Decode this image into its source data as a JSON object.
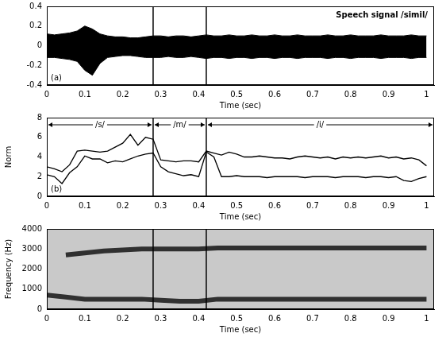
{
  "chart_data": [
    {
      "type": "area",
      "panel": "(a)",
      "annotation": "Speech signal /simil/",
      "xlabel": "Time (sec)",
      "x": [
        0,
        0.02,
        0.04,
        0.06,
        0.08,
        0.1,
        0.12,
        0.14,
        0.16,
        0.18,
        0.2,
        0.22,
        0.24,
        0.26,
        0.28,
        0.3,
        0.32,
        0.34,
        0.36,
        0.38,
        0.4,
        0.42,
        0.44,
        0.46,
        0.48,
        0.5,
        0.52,
        0.54,
        0.56,
        0.58,
        0.6,
        0.62,
        0.64,
        0.66,
        0.68,
        0.7,
        0.72,
        0.74,
        0.76,
        0.78,
        0.8,
        0.82,
        0.84,
        0.86,
        0.88,
        0.9,
        0.92,
        0.94,
        0.96,
        0.98,
        1.0
      ],
      "series": [
        {
          "color": "#000000",
          "values": [
            0.12,
            0.11,
            0.12,
            0.13,
            0.15,
            0.2,
            0.17,
            0.12,
            0.1,
            0.09,
            0.09,
            0.08,
            0.08,
            0.09,
            0.1,
            0.1,
            0.09,
            0.1,
            0.1,
            0.09,
            0.1,
            0.11,
            0.1,
            0.1,
            0.11,
            0.1,
            0.1,
            0.11,
            0.1,
            0.1,
            0.11,
            0.1,
            0.1,
            0.11,
            0.1,
            0.1,
            0.1,
            0.11,
            0.1,
            0.1,
            0.11,
            0.1,
            0.1,
            0.1,
            0.11,
            0.1,
            0.1,
            0.1,
            0.11,
            0.1,
            0.1
          ]
        },
        {
          "color": "#000000",
          "values": [
            -0.12,
            -0.12,
            -0.13,
            -0.14,
            -0.16,
            -0.25,
            -0.3,
            -0.18,
            -0.12,
            -0.11,
            -0.1,
            -0.1,
            -0.11,
            -0.12,
            -0.12,
            -0.12,
            -0.11,
            -0.12,
            -0.12,
            -0.11,
            -0.12,
            -0.13,
            -0.12,
            -0.12,
            -0.13,
            -0.12,
            -0.12,
            -0.13,
            -0.12,
            -0.12,
            -0.13,
            -0.12,
            -0.12,
            -0.13,
            -0.12,
            -0.12,
            -0.12,
            -0.13,
            -0.12,
            -0.12,
            -0.13,
            -0.12,
            -0.12,
            -0.12,
            -0.13,
            -0.12,
            -0.12,
            -0.12,
            -0.13,
            -0.12,
            -0.12
          ]
        }
      ],
      "boundaries": [
        0.28,
        0.42
      ],
      "xlim": [
        0,
        1.02
      ],
      "xticks": [
        0,
        0.1,
        0.2,
        0.3,
        0.4,
        0.5,
        0.6,
        0.7,
        0.8,
        0.9,
        1
      ],
      "ylim": [
        -0.4,
        0.4
      ],
      "yticks": [
        -0.4,
        -0.2,
        0,
        0.2,
        0.4
      ],
      "grid": false
    },
    {
      "type": "line",
      "panel": "(b)",
      "xlabel": "Time (sec)",
      "ylabel": "Norm",
      "x": [
        0,
        0.02,
        0.04,
        0.06,
        0.08,
        0.1,
        0.12,
        0.14,
        0.16,
        0.18,
        0.2,
        0.22,
        0.24,
        0.26,
        0.28,
        0.3,
        0.32,
        0.34,
        0.36,
        0.38,
        0.4,
        0.42,
        0.44,
        0.46,
        0.48,
        0.5,
        0.52,
        0.54,
        0.56,
        0.58,
        0.6,
        0.62,
        0.64,
        0.66,
        0.68,
        0.7,
        0.72,
        0.74,
        0.76,
        0.78,
        0.8,
        0.82,
        0.84,
        0.86,
        0.88,
        0.9,
        0.92,
        0.94,
        0.96,
        0.98,
        1.0
      ],
      "series": [
        {
          "color": "#000000",
          "values": [
            3.0,
            2.8,
            2.5,
            3.2,
            4.6,
            4.7,
            4.6,
            4.5,
            4.6,
            5.0,
            5.4,
            6.3,
            5.2,
            6.0,
            5.8,
            3.7,
            3.6,
            3.5,
            3.6,
            3.6,
            3.5,
            4.6,
            4.4,
            4.2,
            4.5,
            4.3,
            4.0,
            4.0,
            4.1,
            4.0,
            3.9,
            3.9,
            3.8,
            4.0,
            4.1,
            4.0,
            3.9,
            4.0,
            3.8,
            4.0,
            3.9,
            4.0,
            3.9,
            4.0,
            4.1,
            3.9,
            4.0,
            3.8,
            3.9,
            3.7,
            3.1
          ]
        },
        {
          "color": "#000000",
          "values": [
            2.2,
            2.0,
            1.3,
            2.4,
            3.0,
            4.1,
            3.8,
            3.8,
            3.4,
            3.6,
            3.5,
            3.8,
            4.1,
            4.3,
            4.4,
            3.0,
            2.5,
            2.3,
            2.1,
            2.2,
            2.0,
            4.5,
            4.0,
            2.0,
            2.0,
            2.1,
            2.0,
            2.0,
            2.0,
            1.9,
            2.0,
            2.0,
            2.0,
            2.0,
            1.9,
            2.0,
            2.0,
            2.0,
            1.9,
            2.0,
            2.0,
            2.0,
            1.9,
            2.0,
            2.0,
            1.9,
            2.0,
            1.6,
            1.5,
            1.8,
            2.0
          ]
        }
      ],
      "boundaries": [
        0.28,
        0.42
      ],
      "segments": [
        {
          "label": "/s/",
          "start": 0,
          "end": 0.28
        },
        {
          "label": "/m/",
          "start": 0.28,
          "end": 0.42
        },
        {
          "label": "/i/",
          "start": 0.42,
          "end": 1.02
        }
      ],
      "xlim": [
        0,
        1.02
      ],
      "xticks": [
        0,
        0.1,
        0.2,
        0.3,
        0.4,
        0.5,
        0.6,
        0.7,
        0.8,
        0.9,
        1
      ],
      "ylim": [
        0,
        8
      ],
      "yticks": [
        0,
        2,
        4,
        6,
        8
      ],
      "grid": false
    },
    {
      "type": "line",
      "xlabel": "Time (sec)",
      "ylabel": "Frequency (Hz)",
      "x": [
        0,
        0.05,
        0.1,
        0.15,
        0.2,
        0.25,
        0.3,
        0.35,
        0.4,
        0.45,
        0.5,
        0.55,
        0.6,
        0.65,
        0.7,
        0.75,
        0.8,
        0.85,
        0.9,
        0.95,
        1.0
      ],
      "series": [
        {
          "color": "#303030",
          "values": [
            700,
            600,
            500,
            500,
            500,
            500,
            450,
            400,
            400,
            500,
            500,
            500,
            500,
            500,
            500,
            500,
            500,
            500,
            500,
            500,
            500
          ]
        },
        {
          "color": "#303030",
          "values": [
            null,
            2700,
            2800,
            2900,
            2950,
            3000,
            3000,
            3000,
            3000,
            3050,
            3050,
            3050,
            3050,
            3050,
            3050,
            3050,
            3050,
            3050,
            3050,
            3050,
            3050
          ]
        }
      ],
      "boundaries": [
        0.28,
        0.42
      ],
      "xlim": [
        0,
        1.02
      ],
      "xticks": [
        0,
        0.1,
        0.2,
        0.3,
        0.4,
        0.5,
        0.6,
        0.7,
        0.8,
        0.9,
        1
      ],
      "ylim": [
        0,
        4000
      ],
      "yticks": [
        0,
        1000,
        2000,
        3000,
        4000
      ],
      "grid": false
    }
  ]
}
